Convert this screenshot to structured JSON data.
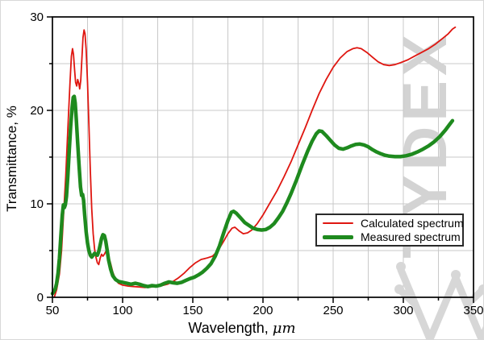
{
  "watermark": {
    "text": "TYDEX",
    "color": "#d3d3d3",
    "logo_color": "#d7d7d7"
  },
  "legend": {
    "items": [
      {
        "label": "Calculated spectrum",
        "color": "#df1610",
        "thickness": 2
      },
      {
        "label": "Measured spectrum",
        "color": "#1e8a1e",
        "thickness": 5
      }
    ]
  },
  "axes": {
    "x_label_prefix": "Wavelength, ",
    "x_label_unit": "μm",
    "y_label": "Transmittance, %"
  },
  "chart_data": {
    "type": "line",
    "title": "",
    "xlabel": "Wavelength, μm",
    "ylabel": "Transmittance, %",
    "xlim": [
      50,
      350
    ],
    "ylim": [
      0,
      30
    ],
    "x_major_ticks": [
      50,
      100,
      150,
      200,
      250,
      300,
      350
    ],
    "x_tick_labels": [
      "50",
      "100",
      "150",
      "200",
      "250",
      "300",
      "350"
    ],
    "x_minor_step": 25,
    "y_major_ticks": [
      0,
      10,
      20,
      30
    ],
    "y_tick_labels": [
      "0",
      "10",
      "20",
      "30"
    ],
    "y_minor_step": 5,
    "grid": true,
    "grid_x_step": 25,
    "grid_y_step": 5,
    "grid_color": "#c9c9c9",
    "frame_color": "#000000",
    "legend_position": "inside-right-middle",
    "series": [
      {
        "name": "Calculated spectrum",
        "color": "#df1610",
        "width": 1.8,
        "points": [
          [
            51.5,
            0.1
          ],
          [
            53,
            0.8
          ],
          [
            55,
            2.5
          ],
          [
            56.5,
            5
          ],
          [
            58,
            9
          ],
          [
            59.5,
            13
          ],
          [
            61,
            18
          ],
          [
            62.5,
            23
          ],
          [
            63.5,
            25.8
          ],
          [
            64.3,
            26.6
          ],
          [
            65,
            26
          ],
          [
            65.8,
            24.3
          ],
          [
            66.5,
            23
          ],
          [
            67.3,
            22.6
          ],
          [
            68,
            23.3
          ],
          [
            68.8,
            22.9
          ],
          [
            69.4,
            22.3
          ],
          [
            70.2,
            23.2
          ],
          [
            71,
            25.5
          ],
          [
            71.8,
            27.8
          ],
          [
            72.5,
            28.6
          ],
          [
            73.2,
            28.2
          ],
          [
            74,
            26.5
          ],
          [
            75,
            23
          ],
          [
            76,
            18.5
          ],
          [
            77,
            13.5
          ],
          [
            78,
            9.5
          ],
          [
            79,
            6.8
          ],
          [
            80,
            5.2
          ],
          [
            81,
            4.3
          ],
          [
            82,
            3.7
          ],
          [
            83,
            3.5
          ],
          [
            84,
            4.2
          ],
          [
            85,
            4.6
          ],
          [
            86,
            4.4
          ],
          [
            87,
            4.6
          ],
          [
            88,
            4.9
          ],
          [
            89,
            4.8
          ],
          [
            90,
            4.4
          ],
          [
            91.5,
            3.6
          ],
          [
            93,
            2.7
          ],
          [
            95,
            1.9
          ],
          [
            97,
            1.5
          ],
          [
            100,
            1.3
          ],
          [
            104,
            1.2
          ],
          [
            108,
            1.15
          ],
          [
            112,
            1.1
          ],
          [
            116,
            1.05
          ],
          [
            120,
            1.1
          ],
          [
            124,
            1.15
          ],
          [
            128,
            1.25
          ],
          [
            132,
            1.4
          ],
          [
            136,
            1.7
          ],
          [
            140,
            2.1
          ],
          [
            144,
            2.6
          ],
          [
            148,
            3.2
          ],
          [
            152,
            3.7
          ],
          [
            156,
            4.05
          ],
          [
            160,
            4.2
          ],
          [
            164,
            4.4
          ],
          [
            168,
            5
          ],
          [
            172,
            6
          ],
          [
            175,
            6.8
          ],
          [
            178,
            7.4
          ],
          [
            180,
            7.5
          ],
          [
            183,
            7.1
          ],
          [
            186,
            6.8
          ],
          [
            189,
            6.9
          ],
          [
            192,
            7.2
          ],
          [
            196,
            7.9
          ],
          [
            200,
            8.8
          ],
          [
            205,
            10.1
          ],
          [
            210,
            11.4
          ],
          [
            215,
            12.9
          ],
          [
            220,
            14.5
          ],
          [
            225,
            16.3
          ],
          [
            230,
            18.1
          ],
          [
            235,
            20
          ],
          [
            240,
            21.8
          ],
          [
            245,
            23.3
          ],
          [
            250,
            24.6
          ],
          [
            255,
            25.6
          ],
          [
            260,
            26.3
          ],
          [
            264,
            26.6
          ],
          [
            267,
            26.7
          ],
          [
            270,
            26.6
          ],
          [
            274,
            26.2
          ],
          [
            278,
            25.7
          ],
          [
            282,
            25.2
          ],
          [
            286,
            24.9
          ],
          [
            290,
            24.8
          ],
          [
            294,
            24.9
          ],
          [
            298,
            25.1
          ],
          [
            303,
            25.4
          ],
          [
            308,
            25.8
          ],
          [
            313,
            26.2
          ],
          [
            318,
            26.6
          ],
          [
            323,
            27.1
          ],
          [
            328,
            27.7
          ],
          [
            332,
            28.2
          ],
          [
            335,
            28.7
          ],
          [
            337,
            28.9
          ]
        ]
      },
      {
        "name": "Measured spectrum",
        "color": "#1e8a1e",
        "width": 4.5,
        "points": [
          [
            50,
            0.4
          ],
          [
            51,
            0.6
          ],
          [
            52,
            0.9
          ],
          [
            53,
            1.5
          ],
          [
            54,
            2.6
          ],
          [
            55,
            4.2
          ],
          [
            56,
            6.5
          ],
          [
            57,
            8.8
          ],
          [
            57.8,
            9.9
          ],
          [
            58.5,
            9.6
          ],
          [
            59.2,
            9.9
          ],
          [
            60,
            10.8
          ],
          [
            61,
            13
          ],
          [
            62,
            15.8
          ],
          [
            63,
            18.3
          ],
          [
            64,
            20.3
          ],
          [
            64.8,
            21.4
          ],
          [
            65.5,
            21.5
          ],
          [
            66.2,
            20.8
          ],
          [
            67,
            19
          ],
          [
            68,
            16.5
          ],
          [
            69,
            14
          ],
          [
            70,
            11.8
          ],
          [
            70.8,
            10.9
          ],
          [
            71.5,
            11
          ],
          [
            72.2,
            10.4
          ],
          [
            73,
            8.8
          ],
          [
            74,
            7
          ],
          [
            75,
            5.8
          ],
          [
            76,
            5
          ],
          [
            77,
            4.5
          ],
          [
            78,
            4.3
          ],
          [
            79,
            4.5
          ],
          [
            80,
            4.7
          ],
          [
            81,
            4.6
          ],
          [
            82,
            4.5
          ],
          [
            83,
            4.9
          ],
          [
            84,
            5.6
          ],
          [
            85,
            6.3
          ],
          [
            86,
            6.7
          ],
          [
            87,
            6.6
          ],
          [
            88,
            6
          ],
          [
            89,
            5
          ],
          [
            90,
            4
          ],
          [
            91.5,
            3
          ],
          [
            93,
            2.3
          ],
          [
            95,
            1.9
          ],
          [
            97,
            1.7
          ],
          [
            100,
            1.6
          ],
          [
            103,
            1.5
          ],
          [
            106,
            1.4
          ],
          [
            109,
            1.5
          ],
          [
            112,
            1.4
          ],
          [
            115,
            1.25
          ],
          [
            118,
            1.15
          ],
          [
            121,
            1.25
          ],
          [
            124,
            1.2
          ],
          [
            127,
            1.3
          ],
          [
            130,
            1.5
          ],
          [
            133,
            1.65
          ],
          [
            136,
            1.55
          ],
          [
            139,
            1.5
          ],
          [
            142,
            1.6
          ],
          [
            145,
            1.8
          ],
          [
            148,
            2
          ],
          [
            151,
            2.15
          ],
          [
            154,
            2.4
          ],
          [
            157,
            2.7
          ],
          [
            160,
            3.1
          ],
          [
            163,
            3.6
          ],
          [
            166,
            4.4
          ],
          [
            169,
            5.5
          ],
          [
            172,
            6.9
          ],
          [
            175,
            8.2
          ],
          [
            177.5,
            9.1
          ],
          [
            179,
            9.2
          ],
          [
            181,
            9
          ],
          [
            184,
            8.5
          ],
          [
            187,
            8
          ],
          [
            190,
            7.7
          ],
          [
            193,
            7.4
          ],
          [
            196,
            7.25
          ],
          [
            199,
            7.2
          ],
          [
            202,
            7.25
          ],
          [
            205,
            7.5
          ],
          [
            208,
            7.9
          ],
          [
            211,
            8.5
          ],
          [
            214,
            9.2
          ],
          [
            217,
            10.1
          ],
          [
            220,
            11.1
          ],
          [
            224,
            12.6
          ],
          [
            228,
            14.2
          ],
          [
            232,
            15.7
          ],
          [
            235,
            16.7
          ],
          [
            238,
            17.5
          ],
          [
            240,
            17.8
          ],
          [
            242,
            17.75
          ],
          [
            245,
            17.3
          ],
          [
            248,
            16.8
          ],
          [
            251,
            16.3
          ],
          [
            254,
            15.95
          ],
          [
            257,
            15.85
          ],
          [
            260,
            16
          ],
          [
            263,
            16.2
          ],
          [
            266,
            16.35
          ],
          [
            269,
            16.4
          ],
          [
            272,
            16.3
          ],
          [
            275,
            16.1
          ],
          [
            278,
            15.8
          ],
          [
            281,
            15.55
          ],
          [
            284,
            15.35
          ],
          [
            287,
            15.2
          ],
          [
            290,
            15.1
          ],
          [
            294,
            15.05
          ],
          [
            298,
            15.05
          ],
          [
            302,
            15.15
          ],
          [
            306,
            15.3
          ],
          [
            310,
            15.55
          ],
          [
            314,
            15.85
          ],
          [
            318,
            16.2
          ],
          [
            322,
            16.65
          ],
          [
            326,
            17.2
          ],
          [
            330,
            17.9
          ],
          [
            333,
            18.5
          ],
          [
            335,
            18.9
          ]
        ]
      }
    ]
  }
}
